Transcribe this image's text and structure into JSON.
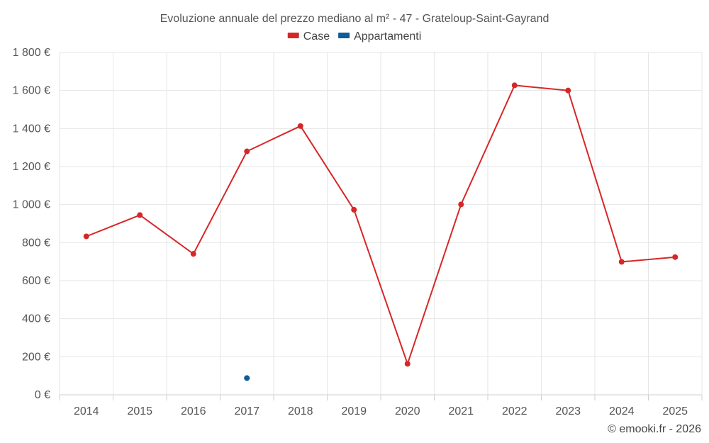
{
  "chart_data": {
    "type": "line",
    "title": "Evoluzione annuale del prezzo mediano al m² - 47 - Grateloup-Saint-Gayrand",
    "categories": [
      "2014",
      "2015",
      "2016",
      "2017",
      "2018",
      "2019",
      "2020",
      "2021",
      "2022",
      "2023",
      "2024",
      "2025"
    ],
    "series": [
      {
        "name": "Case",
        "color": "#d62728",
        "values": [
          833,
          945,
          741,
          1280,
          1413,
          973,
          163,
          1001,
          1627,
          1600,
          699,
          724
        ]
      },
      {
        "name": "Appartamenti",
        "color": "#0f5b99",
        "values": [
          null,
          null,
          null,
          88,
          null,
          null,
          null,
          null,
          null,
          null,
          null,
          null
        ]
      }
    ],
    "ylim": [
      0,
      1800
    ],
    "yticks": [
      0,
      200,
      400,
      600,
      800,
      1000,
      1200,
      1400,
      1600,
      1800
    ],
    "ytick_labels": [
      "0 €",
      "200 €",
      "400 €",
      "600 €",
      "800 €",
      "1 000 €",
      "1 200 €",
      "1 400 €",
      "1 600 €",
      "1 800 €"
    ],
    "xlabel": "",
    "ylabel": "",
    "legend_position": "top-center",
    "grid": true
  },
  "credit": "© emooki.fr - 2026"
}
